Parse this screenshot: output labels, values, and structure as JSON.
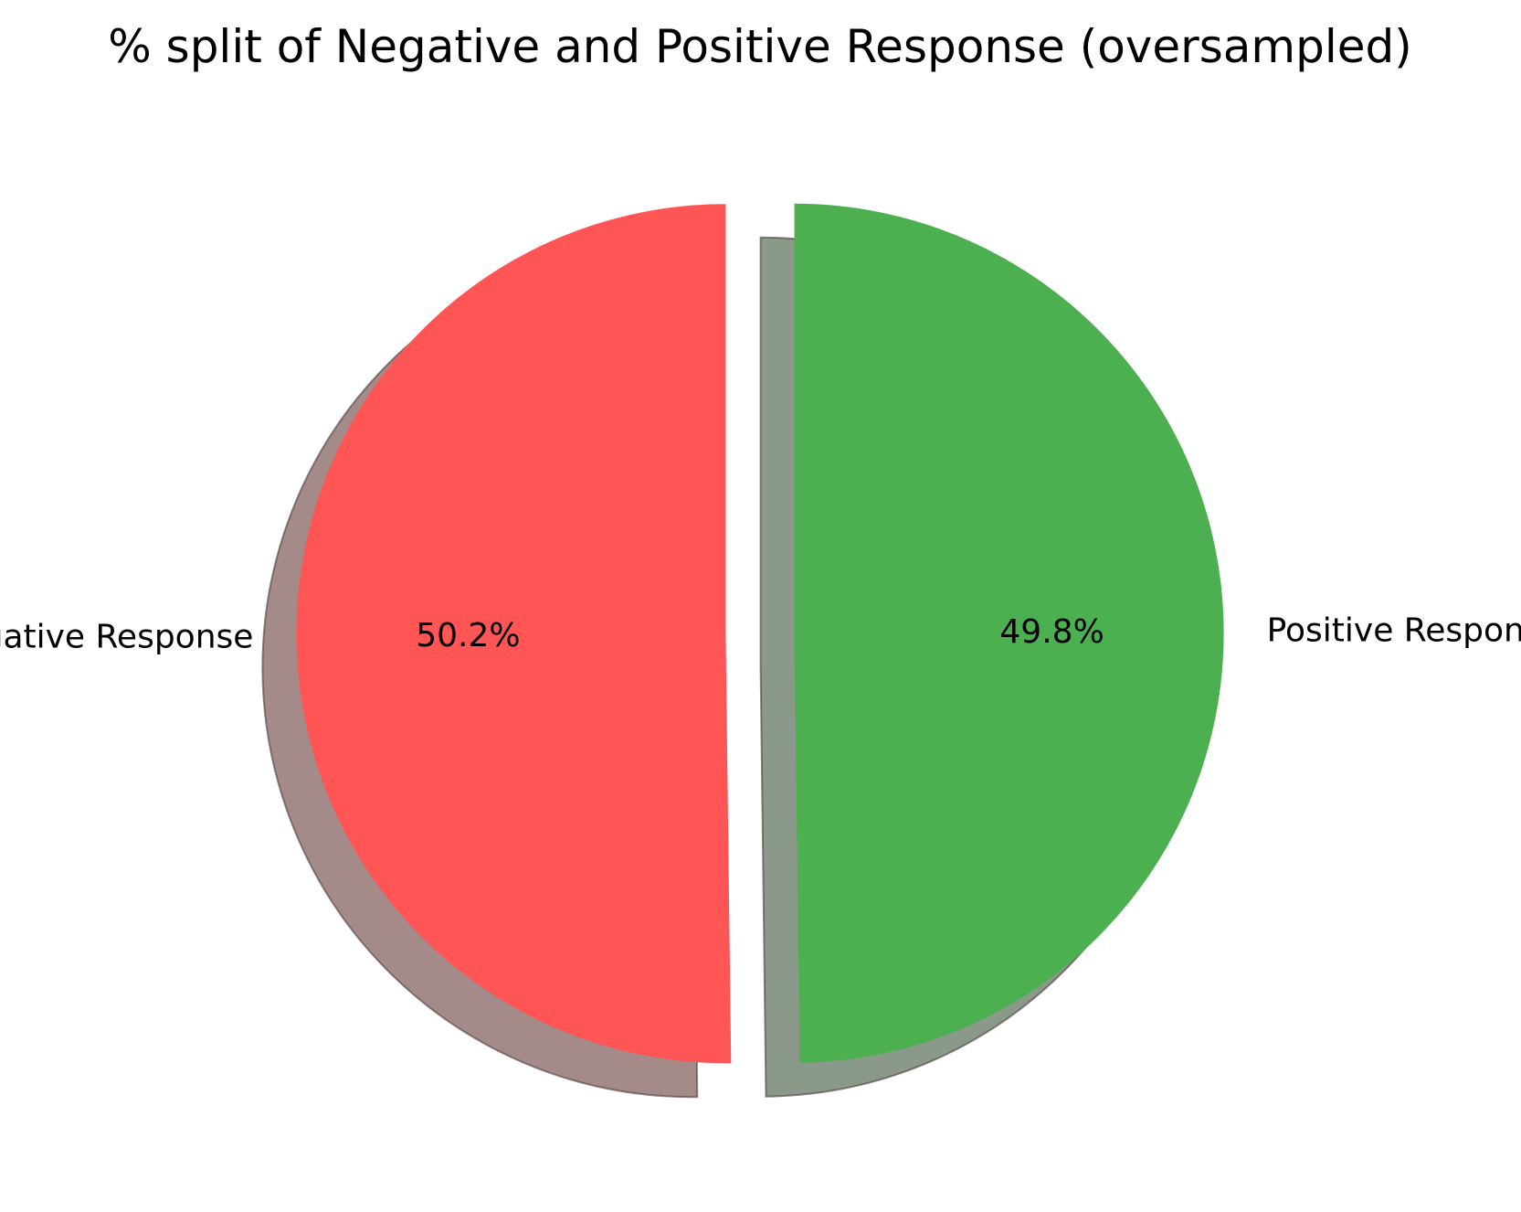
{
  "chart_data": {
    "type": "pie",
    "title": "% split of Negative and Positive Response (oversampled)",
    "slices": [
      {
        "label": "Negative Response",
        "value": 50.2,
        "pct_label": "50.2%",
        "color": "#ff5555",
        "shadow_color": "#a58a8a"
      },
      {
        "label": "Positive Response",
        "value": 49.8,
        "pct_label": "49.8%",
        "color": "#4caf50",
        "shadow_color": "#8a998a"
      }
    ],
    "start_angle": 90,
    "exploded": true,
    "shadow": true,
    "legend": "none"
  }
}
